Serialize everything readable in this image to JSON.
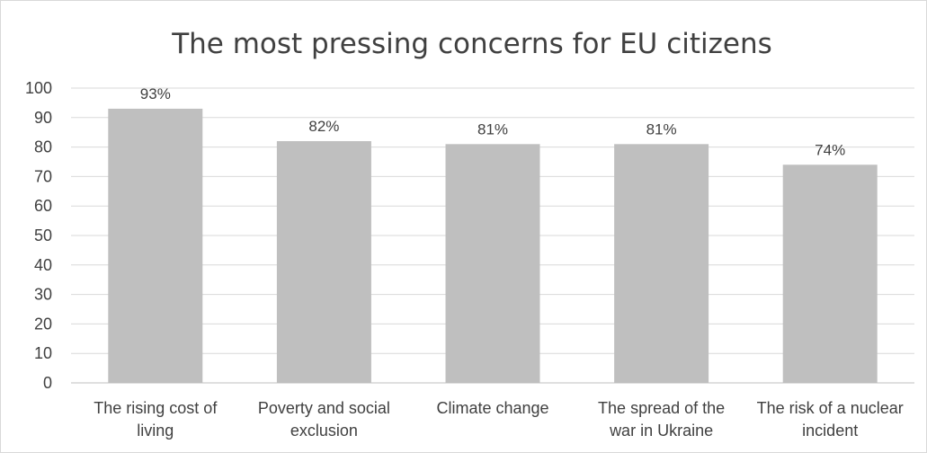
{
  "chart_data": {
    "type": "bar",
    "title": "The most pressing concerns for EU citizens",
    "categories": [
      [
        "The rising cost of",
        "living"
      ],
      [
        "Poverty and social",
        "exclusion"
      ],
      [
        "Climate change"
      ],
      [
        "The spread of the",
        "war in Ukraine"
      ],
      [
        "The risk of a nuclear",
        "incident"
      ]
    ],
    "values": [
      93,
      82,
      81,
      81,
      74
    ],
    "data_labels": [
      "93%",
      "82%",
      "81%",
      "81%",
      "74%"
    ],
    "ylim": [
      0,
      100
    ],
    "yticks": [
      "0",
      "10",
      "20",
      "30",
      "40",
      "50",
      "60",
      "70",
      "80",
      "90",
      "100"
    ],
    "grid": true,
    "legend": "none",
    "bar_color": "#bfbfbf",
    "xlabel": "",
    "ylabel": ""
  }
}
